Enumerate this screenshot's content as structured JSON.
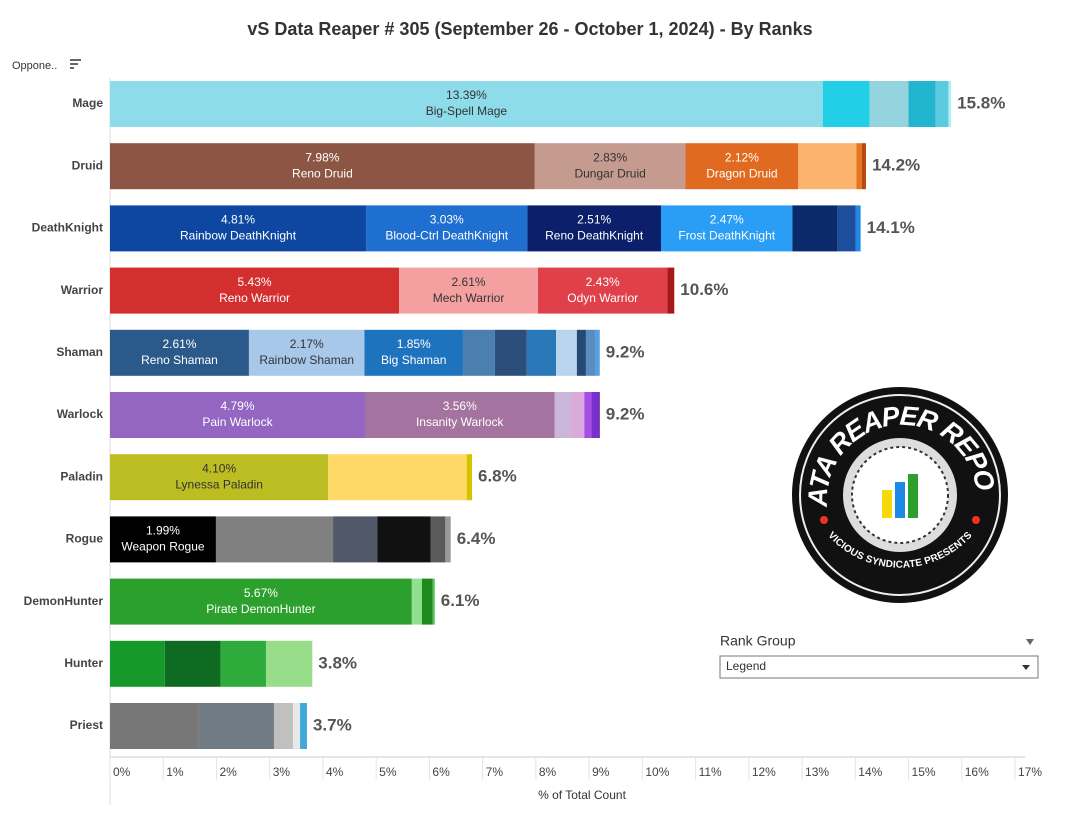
{
  "chart_data": {
    "type": "stacked-bar-horizontal",
    "title": "vS Data Reaper #  305 (September 26 - October 1, 2024) - By Ranks",
    "x_label": "% of Total Count",
    "filter_label": "Oppone..",
    "xlim": [
      0,
      17
    ],
    "xticks": [
      {
        "value": 0,
        "label": "0%"
      },
      {
        "value": 1,
        "label": "1%"
      },
      {
        "value": 2,
        "label": "2%"
      },
      {
        "value": 3,
        "label": "3%"
      },
      {
        "value": 4,
        "label": "4%"
      },
      {
        "value": 5,
        "label": "5%"
      },
      {
        "value": 6,
        "label": "6%"
      },
      {
        "value": 7,
        "label": "7%"
      },
      {
        "value": 8,
        "label": "8%"
      },
      {
        "value": 9,
        "label": "9%"
      },
      {
        "value": 10,
        "label": "10%"
      },
      {
        "value": 11,
        "label": "11%"
      },
      {
        "value": 12,
        "label": "12%"
      },
      {
        "value": 13,
        "label": "13%"
      },
      {
        "value": 14,
        "label": "14%"
      },
      {
        "value": 15,
        "label": "15%"
      },
      {
        "value": 16,
        "label": "16%"
      },
      {
        "value": 17,
        "label": "17%"
      }
    ],
    "categories": [
      "Mage",
      "Druid",
      "DeathKnight",
      "Warrior",
      "Shaman",
      "Warlock",
      "Paladin",
      "Rogue",
      "DemonHunter",
      "Hunter",
      "Priest"
    ],
    "totals": [
      15.8,
      14.2,
      14.1,
      10.6,
      9.2,
      9.2,
      6.8,
      6.4,
      6.1,
      3.8,
      3.7
    ],
    "total_labels": [
      "15.8%",
      "14.2%",
      "14.1%",
      "10.6%",
      "9.2%",
      "9.2%",
      "6.8%",
      "6.4%",
      "6.1%",
      "3.8%",
      "3.7%"
    ],
    "bars": [
      {
        "segments": [
          {
            "value": 13.39,
            "label": "13.39%",
            "name": "Big-Spell Mage",
            "color": "#8edbe9"
          },
          {
            "value": 0.88,
            "color": "#21d0e6"
          },
          {
            "value": 0.73,
            "color": "#93d4de"
          },
          {
            "value": 0.51,
            "color": "#22b5d0"
          },
          {
            "value": 0.24,
            "color": "#5ccbe0"
          },
          {
            "value": 0.05,
            "color": "#b6ecf4"
          }
        ]
      },
      {
        "segments": [
          {
            "value": 7.98,
            "label": "7.98%",
            "name": "Reno Druid",
            "color": "#8c5544"
          },
          {
            "value": 2.83,
            "label": "2.83%",
            "name": "Dungar Druid",
            "color": "#c59b8f"
          },
          {
            "value": 2.12,
            "label": "2.12%",
            "name": "Dragon Druid",
            "color": "#e06a1f"
          },
          {
            "value": 1.09,
            "color": "#fcb36e"
          },
          {
            "value": 0.1,
            "color": "#e5761f"
          },
          {
            "value": 0.08,
            "color": "#b84810"
          }
        ]
      },
      {
        "segments": [
          {
            "value": 4.81,
            "label": "4.81%",
            "name": "Rainbow DeathKnight",
            "color": "#0d47a1"
          },
          {
            "value": 3.03,
            "label": "3.03%",
            "name": "Blood-Ctrl DeathKnight",
            "color": "#1e6fd0"
          },
          {
            "value": 2.51,
            "label": "2.51%",
            "name": "Reno DeathKnight",
            "color": "#0b1f6b"
          },
          {
            "value": 2.47,
            "label": "2.47%",
            "name": "Frost DeathKnight",
            "color": "#2a9df4"
          },
          {
            "value": 0.85,
            "color": "#0a2a6b"
          },
          {
            "value": 0.34,
            "color": "#1d4e9e"
          },
          {
            "value": 0.09,
            "color": "#1e88e5"
          }
        ]
      },
      {
        "segments": [
          {
            "value": 5.43,
            "label": "5.43%",
            "name": "Reno Warrior",
            "color": "#d32f2f"
          },
          {
            "value": 2.61,
            "label": "2.61%",
            "name": "Mech Warrior",
            "color": "#f4a0a0"
          },
          {
            "value": 2.43,
            "label": "2.43%",
            "name": "Odyn Warrior",
            "color": "#e0404a"
          },
          {
            "value": 0.13,
            "color": "#a91818"
          }
        ]
      },
      {
        "segments": [
          {
            "value": 2.61,
            "label": "2.61%",
            "name": "Reno Shaman",
            "color": "#2b5a8a"
          },
          {
            "value": 2.17,
            "label": "2.17%",
            "name": "Rainbow Shaman",
            "color": "#a8c8ea"
          },
          {
            "value": 1.85,
            "label": "1.85%",
            "name": "Big Shaman",
            "color": "#1e73be"
          },
          {
            "value": 0.6,
            "color": "#4a7fb0"
          },
          {
            "value": 0.6,
            "color": "#2b4f7a"
          },
          {
            "value": 0.55,
            "color": "#2a78b8"
          },
          {
            "value": 0.39,
            "color": "#b9d4ee"
          },
          {
            "value": 0.17,
            "color": "#234a74"
          },
          {
            "value": 0.17,
            "color": "#5a8cc0"
          },
          {
            "value": 0.09,
            "color": "#54a0e0"
          }
        ]
      },
      {
        "segments": [
          {
            "value": 4.79,
            "label": "4.79%",
            "name": "Pain Warlock",
            "color": "#9466c2"
          },
          {
            "value": 3.56,
            "label": "3.56%",
            "name": "Insanity Warlock",
            "color": "#a5739f"
          },
          {
            "value": 0.32,
            "color": "#cab6d8"
          },
          {
            "value": 0.24,
            "color": "#d9a9d9"
          },
          {
            "value": 0.13,
            "color": "#a64de6"
          },
          {
            "value": 0.13,
            "color": "#7a2fd0"
          },
          {
            "value": 0.03,
            "color": "#5e17a6"
          }
        ]
      },
      {
        "segments": [
          {
            "value": 4.1,
            "label": "4.10%",
            "name": "Lynessa Paladin",
            "color": "#bcbd22"
          },
          {
            "value": 2.6,
            "color": "#ffd966"
          },
          {
            "value": 0.1,
            "color": "#d4c400"
          }
        ]
      },
      {
        "segments": [
          {
            "value": 1.99,
            "label": "1.99%",
            "name": "Weapon Rogue",
            "color": "#000000"
          },
          {
            "value": 2.2,
            "color": "#808080"
          },
          {
            "value": 0.83,
            "color": "#505869"
          },
          {
            "value": 1.0,
            "color": "#111111"
          },
          {
            "value": 0.28,
            "color": "#5a5a5a"
          },
          {
            "value": 0.1,
            "color": "#999999"
          }
        ]
      },
      {
        "segments": [
          {
            "value": 5.67,
            "label": "5.67%",
            "name": "Pirate DemonHunter",
            "color": "#2ca02c"
          },
          {
            "value": 0.19,
            "color": "#90e090"
          },
          {
            "value": 0.2,
            "color": "#1e8a1e"
          },
          {
            "value": 0.04,
            "color": "#56c056"
          }
        ]
      },
      {
        "segments": [
          {
            "value": 1.03,
            "color": "#159a2a"
          },
          {
            "value": 1.05,
            "color": "#0f6b22"
          },
          {
            "value": 0.85,
            "color": "#2eab3b"
          },
          {
            "value": 0.87,
            "color": "#98dd8a"
          }
        ]
      },
      {
        "segments": [
          {
            "value": 1.67,
            "color": "#777777"
          },
          {
            "value": 1.41,
            "color": "#707b84"
          },
          {
            "value": 0.36,
            "color": "#c0c0c0"
          },
          {
            "value": 0.13,
            "color": "#e8e8e8"
          },
          {
            "value": 0.13,
            "color": "#3fa9d9"
          }
        ]
      }
    ],
    "rank_group": {
      "title": "Rank Group",
      "selected": "Legend"
    },
    "logo": {
      "title": "DATA REAPER REPORT",
      "subtitle": "VICIOUS SYNDICATE PRESENTS"
    }
  }
}
